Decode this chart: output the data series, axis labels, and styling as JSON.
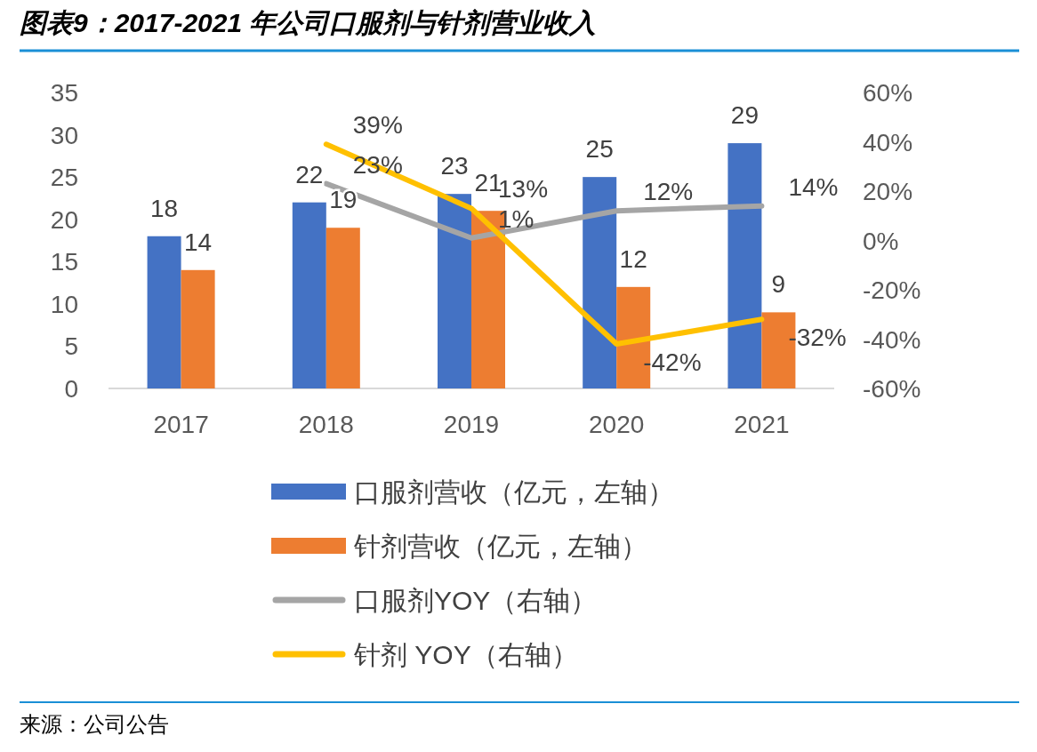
{
  "chart_data": {
    "type": "bar",
    "title": "图表9：2017-2021 年公司口服剂与针剂营业收入",
    "categories": [
      "2017",
      "2018",
      "2019",
      "2020",
      "2021"
    ],
    "series": [
      {
        "name": "口服剂营收（亿元，左轴）",
        "color": "#4472c4",
        "values": [
          18,
          22,
          23,
          25,
          29
        ],
        "value_labels": [
          "18",
          "22",
          "23",
          "25",
          "29"
        ]
      },
      {
        "name": "针剂营收（亿元，左轴）",
        "color": "#ed7d31",
        "values": [
          14,
          19,
          21,
          12,
          9
        ],
        "value_labels": [
          "14",
          "19",
          "21",
          "12",
          "9"
        ]
      },
      {
        "name": "口服剂YOY（右轴）",
        "type": "line",
        "axis": "y2",
        "color": "#a5a5a5",
        "values": [
          null,
          23,
          1,
          12,
          14
        ],
        "value_labels": [
          null,
          "23%",
          "1%",
          "12%",
          "14%"
        ]
      },
      {
        "name": "针剂 YOY（右轴）",
        "type": "line",
        "axis": "y2",
        "color": "#ffc000",
        "values": [
          null,
          39,
          13,
          -42,
          -32
        ],
        "value_labels": [
          null,
          "39%",
          "13%",
          "-42%",
          "-32%"
        ]
      }
    ],
    "ylim": [
      0,
      35
    ],
    "yticks": [
      0,
      5,
      10,
      15,
      20,
      25,
      30,
      35
    ],
    "y2lim": [
      -60,
      60
    ],
    "y2ticks": [
      {
        "value": -60,
        "label": "-60%"
      },
      {
        "value": -40,
        "label": "-40%"
      },
      {
        "value": -20,
        "label": "-20%"
      },
      {
        "value": 0,
        "label": "0%"
      },
      {
        "value": 20,
        "label": "20%"
      },
      {
        "value": 40,
        "label": "40%"
      },
      {
        "value": 60,
        "label": "60%"
      }
    ],
    "grid": false,
    "legend": "bottom",
    "line_style": "solid",
    "marker": "none",
    "annotations": [
      "来源：公司公告"
    ]
  }
}
